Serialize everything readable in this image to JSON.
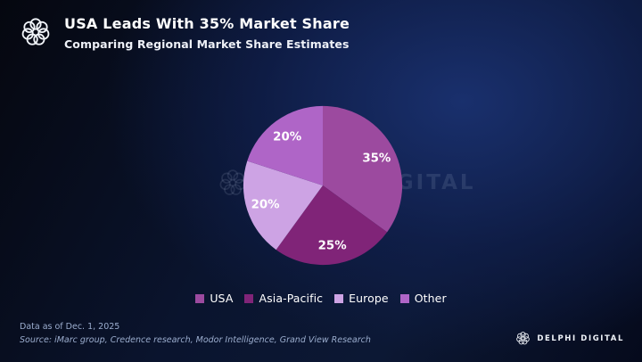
{
  "header": {
    "title": "USA Leads With 35% Market Share",
    "subtitle": "Comparing Regional Market Share Estimates"
  },
  "chart_data": {
    "type": "pie",
    "title": "USA Leads With 35% Market Share",
    "subtitle": "Comparing Regional Market Share Estimates",
    "categories": [
      "USA",
      "Asia-Pacific",
      "Europe",
      "Other"
    ],
    "values": [
      35,
      25,
      20,
      20
    ],
    "data_labels": [
      "35%",
      "25%",
      "20%",
      "20%"
    ],
    "colors": [
      "#9c4a9f",
      "#802478",
      "#cda3e4",
      "#af65c7"
    ],
    "start_angle_deg": 0,
    "direction": "clockwise",
    "legend_position": "bottom",
    "label_color": "#ffffff"
  },
  "footer": {
    "data_as_of": "Data as of Dec. 1, 2025",
    "source": "Source: iMarc group, Credence research, Modor Intelligence, Grand View Research"
  },
  "branding": {
    "name": "DELPHI DIGITAL"
  },
  "watermark": {
    "text": "DELPHI DIGITAL"
  },
  "colors": {
    "background_highlight": "#16295e",
    "background_edge": "#050a1c",
    "text_primary": "#ffffff",
    "footer_text": "#9badce"
  }
}
